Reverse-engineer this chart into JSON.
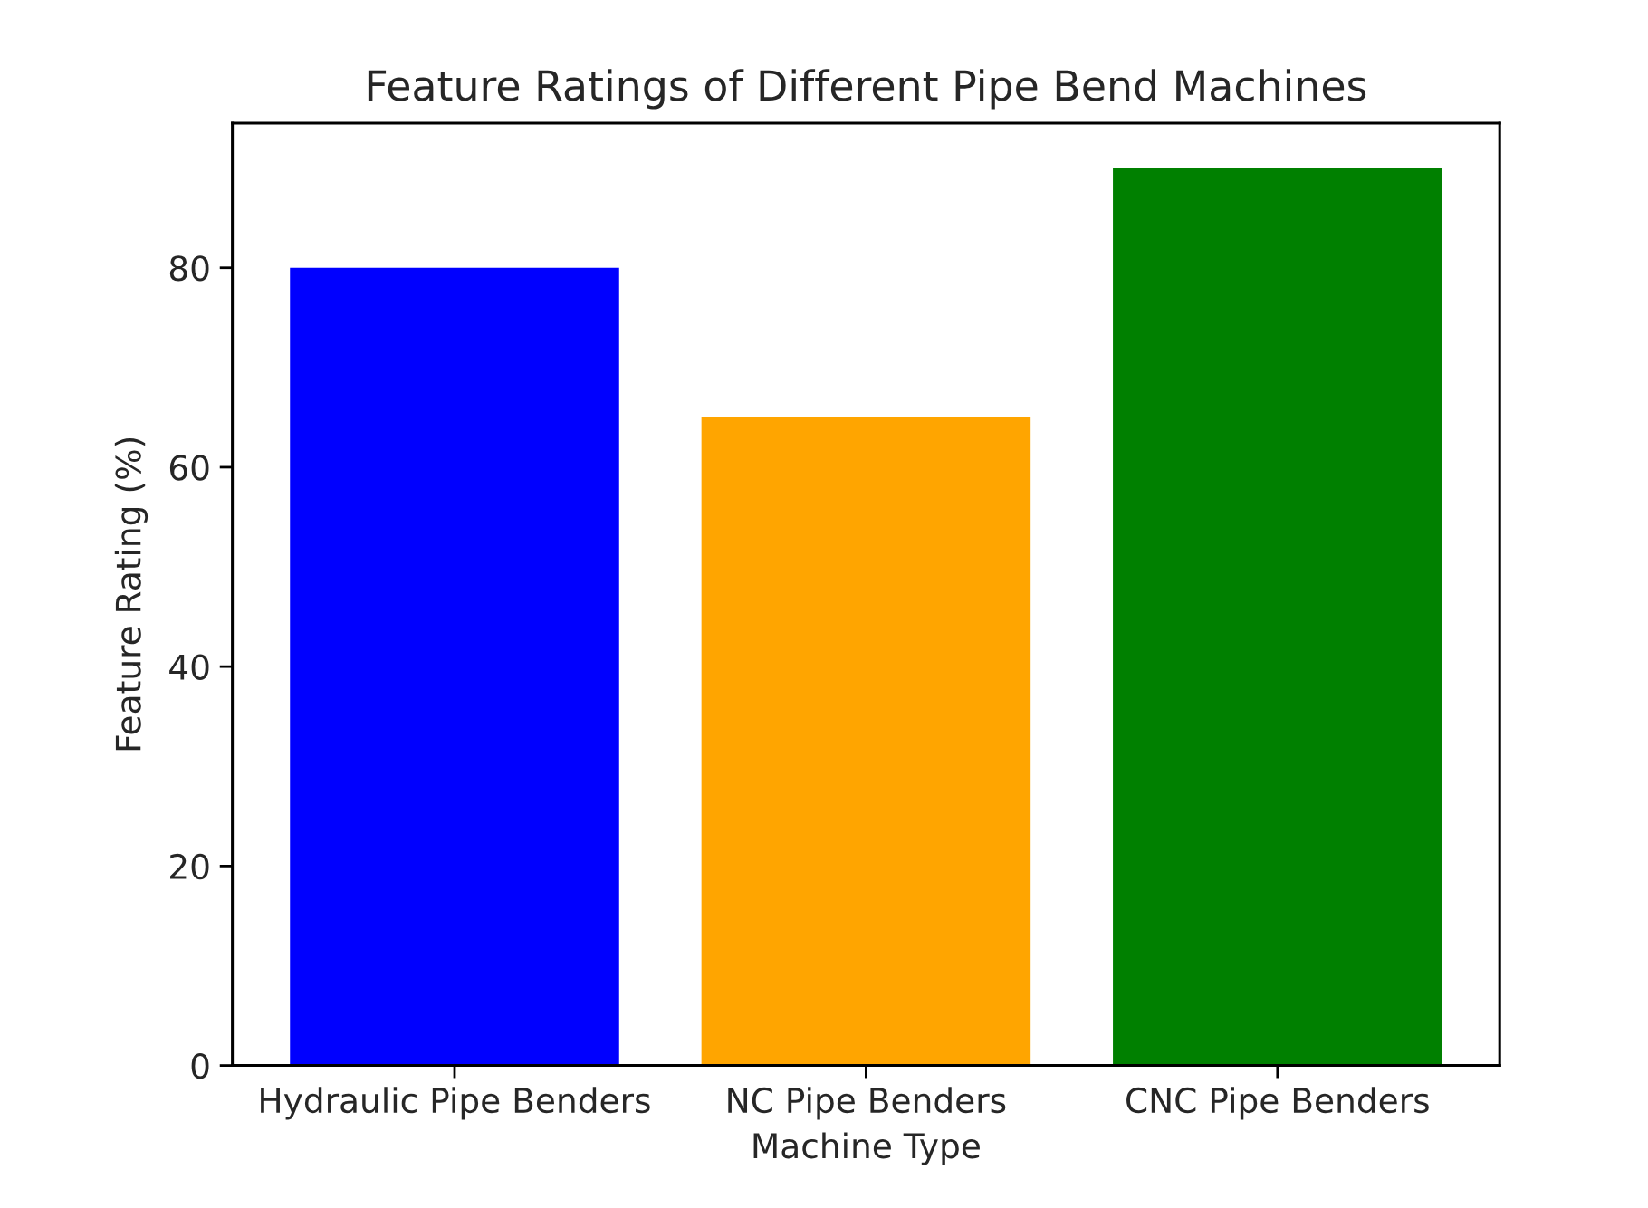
{
  "chart_data": {
    "type": "bar",
    "title": "Feature Ratings of Different Pipe Bend Machines",
    "xlabel": "Machine Type",
    "ylabel": "Feature Rating (%)",
    "categories": [
      "Hydraulic Pipe Benders",
      "NC Pipe Benders",
      "CNC Pipe Benders"
    ],
    "values": [
      80,
      65,
      90
    ],
    "colors": [
      "#0000ff",
      "#ffa500",
      "#008000"
    ],
    "ylim": [
      0,
      94.5
    ],
    "yticks": [
      0,
      20,
      40,
      60,
      80
    ],
    "grid": false,
    "legend": false
  }
}
